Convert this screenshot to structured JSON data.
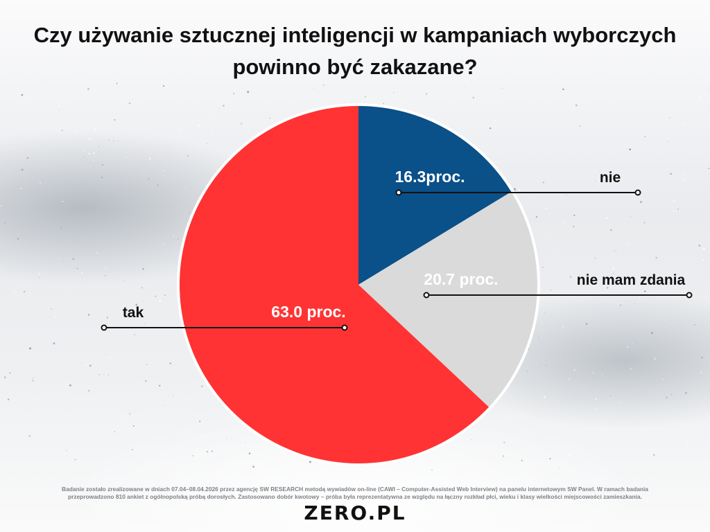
{
  "title": {
    "line1": "Czy używanie sztucznej inteligencji w kampaniach wyborczych",
    "line2": "powinno być zakazane?"
  },
  "chart_data": {
    "type": "pie",
    "title": "Czy używanie sztucznej inteligencji w kampaniach wyborczych powinno być zakazane?",
    "legend": "none",
    "slices": [
      {
        "label": "nie",
        "value": 16.3,
        "value_label": "16.3proc.",
        "color": "#0a5089"
      },
      {
        "label": "nie mam zdania",
        "value": 20.7,
        "value_label": "20.7 proc.",
        "color": "#dadada"
      },
      {
        "label": "tak",
        "value": 63.0,
        "value_label": "63.0 proc.",
        "color": "#ff3333"
      }
    ]
  },
  "footnote": {
    "line1": "Badanie zostało zrealizowane w dniach 07.04–08.04.2026 przez agencję SW RESEARCH metodą wywiadów on-line (CAWI – Computer-Assisted Web Interview) na panelu internetowym SW Panel. W ramach badania",
    "line2": "przeprowadzono 810 ankiet z ogólnopolską próbą dorosłych. Zastosowano dobór kwotowy – próba była reprezentatywna ze względu na łączny rozkład płci, wieku i klasy wielkości miejscowości zamieszkania."
  },
  "logo": "ZERO.PL"
}
